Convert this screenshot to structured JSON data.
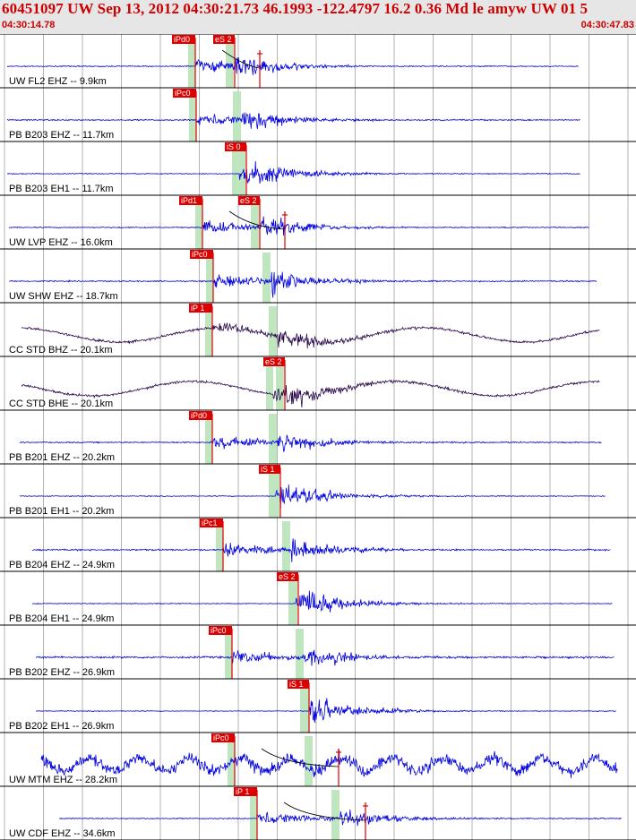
{
  "header": {
    "title": "60451097 UW Sep 13, 2012 04:30:21.73   46.1993 -122.4797 16.2 0.36 Md le amyw UW 01   5",
    "time_start": "04:30:14.78",
    "time_end": "04:30:47.83"
  },
  "colors": {
    "trace": "#0000dd",
    "trace_dark": "#2a0a4a",
    "pick": "#dd0000",
    "window": "#bfe6bf",
    "grid": "#808080",
    "header_bg": "#e6e6e6",
    "header_text": "#cc0000"
  },
  "channels": [
    {
      "label": "UW FL2 EHZ -- 9.9km",
      "pick": "iPd0",
      "pick_offset": 0.0,
      "s_label": "eS 2",
      "s_offset": 2.4,
      "noise": 0.12,
      "color": "trace",
      "x_start": 0.0,
      "x_end": 24.2,
      "coda": true
    },
    {
      "label": "PB B203 EHZ -- 11.7km",
      "pick": "iPc0",
      "pick_offset": 0.0,
      "s_label": "",
      "s_offset": 2.6,
      "noise": 0.15,
      "color": "trace",
      "x_start": 0.0,
      "x_end": 24.5,
      "coda": false
    },
    {
      "label": "PB B203 EH1 -- 11.7km",
      "pick": "",
      "pick_offset": 0.0,
      "s_label": "iS 0",
      "s_offset": 2.7,
      "noise": 0.1,
      "color": "trace",
      "x_start": 0.0,
      "x_end": 24.4,
      "coda": false
    },
    {
      "label": "UW LVP EHZ -- 16.0km",
      "pick": "iPd1",
      "pick_offset": 0.0,
      "s_label": "eS 2",
      "s_offset": 3.0,
      "noise": 0.12,
      "color": "trace",
      "x_start": 0.0,
      "x_end": 24.8,
      "coda": true
    },
    {
      "label": "UW SHW EHZ -- 18.7km",
      "pick": "iPc0",
      "pick_offset": 0.0,
      "s_label": "",
      "s_offset": 3.2,
      "noise": 0.14,
      "color": "trace",
      "x_start": 0.0,
      "x_end": 25.2,
      "coda": false
    },
    {
      "label": "CC STD BHZ -- 20.1km",
      "pick": "iP 1",
      "pick_offset": 0.0,
      "s_label": "",
      "s_offset": 3.4,
      "noise": 0.1,
      "color": "trace_dark",
      "x_start": 0.0,
      "x_end": 25.3,
      "coda": false
    },
    {
      "label": "CC STD BHE -- 20.1km",
      "pick": "",
      "pick_offset": 0.0,
      "s_label": "eS 2",
      "s_offset": 3.4,
      "noise": 0.1,
      "color": "trace_dark",
      "x_start": 0.0,
      "x_end": 25.3,
      "coda": false
    },
    {
      "label": "PB B201 EHZ -- 20.2km",
      "pick": "iPd0",
      "pick_offset": 0.0,
      "s_label": "",
      "s_offset": 3.5,
      "noise": 0.14,
      "color": "trace",
      "x_start": 0.0,
      "x_end": 25.3,
      "coda": false
    },
    {
      "label": "PB B201 EH1 -- 20.2km",
      "pick": "",
      "pick_offset": 0.0,
      "s_label": "iS 1",
      "s_offset": 3.5,
      "noise": 0.1,
      "color": "trace",
      "x_start": 0.0,
      "x_end": 25.3,
      "coda": false
    },
    {
      "label": "PB B204 EHZ -- 24.9km",
      "pick": "iPc1",
      "pick_offset": 0.0,
      "s_label": "",
      "s_offset": 3.9,
      "noise": 0.18,
      "color": "trace",
      "x_start": 0.0,
      "x_end": 25.6,
      "coda": false
    },
    {
      "label": "PB B204 EH1 -- 24.9km",
      "pick": "",
      "pick_offset": 0.0,
      "s_label": "eS 2",
      "s_offset": 3.9,
      "noise": 0.1,
      "color": "trace",
      "x_start": 0.0,
      "x_end": 25.6,
      "coda": false
    },
    {
      "label": "PB B202 EHZ -- 26.9km",
      "pick": "iPc0",
      "pick_offset": 0.0,
      "s_label": "",
      "s_offset": 4.1,
      "noise": 0.22,
      "color": "trace",
      "x_start": 0.0,
      "x_end": 25.8,
      "coda": false
    },
    {
      "label": "PB B202 EH1 -- 26.9km",
      "pick": "",
      "pick_offset": 0.0,
      "s_label": "iS 1",
      "s_offset": 4.1,
      "noise": 0.08,
      "color": "trace",
      "x_start": 0.0,
      "x_end": 25.8,
      "coda": false
    },
    {
      "label": "UW MTM EHZ -- 28.2km",
      "pick": "iPc0",
      "pick_offset": 0.0,
      "s_label": "",
      "s_offset": 4.3,
      "noise": 0.45,
      "color": "trace",
      "x_start": 0.0,
      "x_end": 25.9,
      "coda": true
    },
    {
      "label": "UW CDF EHZ -- 34.6km",
      "pick": "iP 1",
      "pick_offset": 0.0,
      "s_label": "",
      "s_offset": 4.8,
      "noise": 0.12,
      "color": "trace",
      "x_start": 0.0,
      "x_end": 26.0,
      "coda": true
    }
  ]
}
